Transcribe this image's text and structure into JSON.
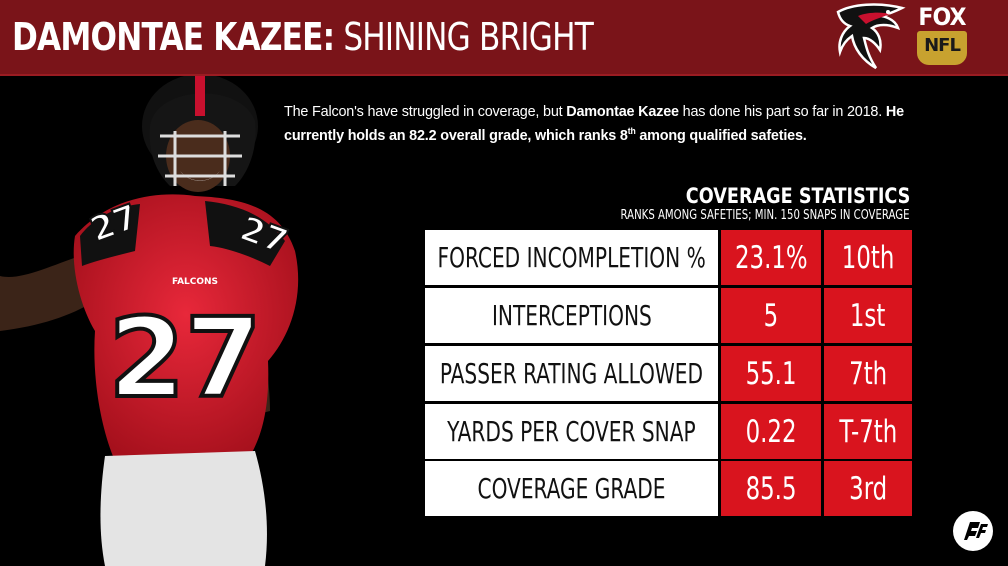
{
  "header": {
    "name": "DAMONTAE KAZEE:",
    "subtitle": "SHINING BRIGHT",
    "team_logo": "falcons-logo",
    "network_logo_top": "FOX",
    "network_logo_bottom": "NFL"
  },
  "intro": {
    "part1": "The Falcon's have struggled in coverage, but ",
    "player": "Damontae Kazee",
    "part2": " has done his part so far in 2018. ",
    "bold_part": "He currently holds an 82.2 overall grade, which ranks 8",
    "sup": "th",
    "bold_end": " among qualified safeties."
  },
  "coverage": {
    "title": "COVERAGE STATISTICS",
    "subtitle": "RANKS AMONG SAFETIES; MIN. 150 SNAPS IN COVERAGE"
  },
  "stats": [
    {
      "label": "FORCED INCOMPLETION %",
      "value": "23.1%",
      "rank": "10th"
    },
    {
      "label": "INTERCEPTIONS",
      "value": "5",
      "rank": "1st"
    },
    {
      "label": "PASSER RATING ALLOWED",
      "value": "55.1",
      "rank": "7th"
    },
    {
      "label": "YARDS PER COVER SNAP",
      "value": "0.22",
      "rank": "T-7th"
    },
    {
      "label": "COVERAGE GRADE",
      "value": "85.5",
      "rank": "3rd"
    }
  ],
  "player_photo": {
    "jersey_number": "27",
    "jersey_text": "FALCONS"
  },
  "footer_logo": "pff-logo",
  "colors": {
    "header_bg": "#7a1419",
    "accent_red": "#d9141e",
    "background": "#000000"
  }
}
